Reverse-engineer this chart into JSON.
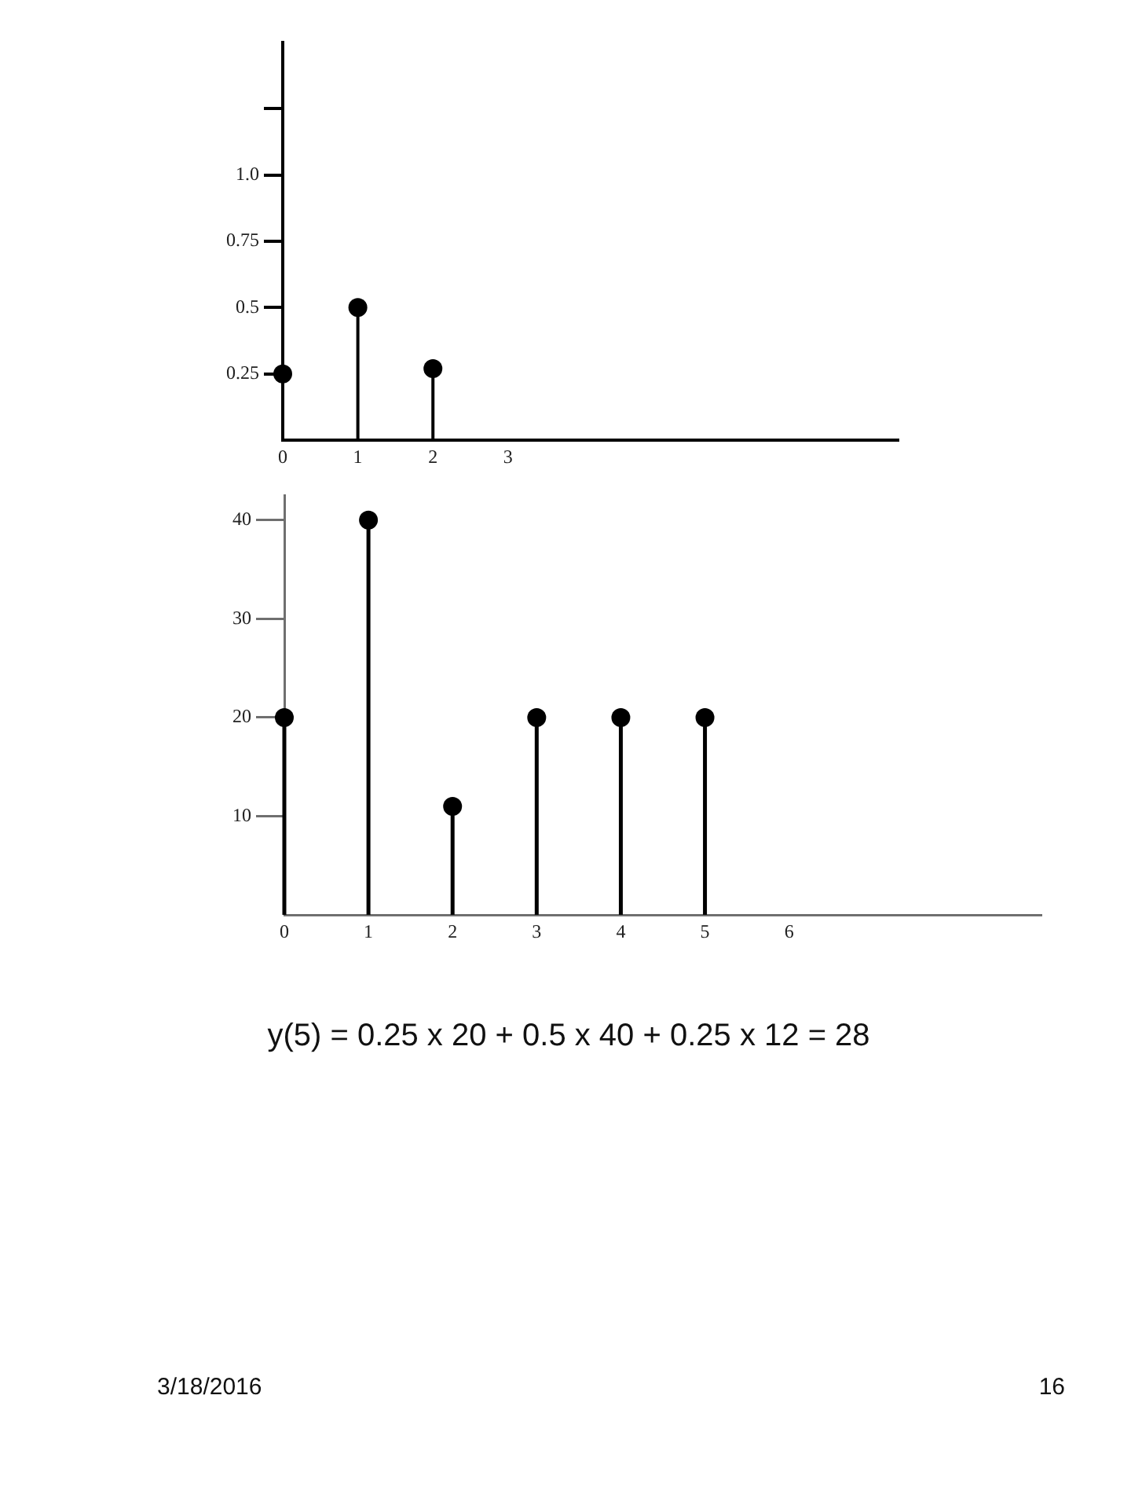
{
  "chart_data": [
    {
      "type": "lollipop",
      "x": [
        0,
        1,
        2
      ],
      "values": [
        0.25,
        0.5,
        0.27
      ],
      "color": "#000000",
      "marker": "circle",
      "xlim": [
        0,
        8.2
      ],
      "xticks": [
        0,
        1,
        2,
        3
      ],
      "ylim": [
        0,
        1.5
      ],
      "yticks": [
        0.25,
        0.5,
        0.75,
        {
          "value": 1,
          "label": "1.0"
        },
        {
          "value": 1.25,
          "label": null
        }
      ]
    },
    {
      "type": "lollipop",
      "x": [
        0,
        1,
        2,
        3,
        4,
        5
      ],
      "values": [
        20,
        40,
        11,
        20,
        20,
        20
      ],
      "color": "#000000",
      "marker": "circle",
      "xlim": [
        0,
        9
      ],
      "xticks": [
        0,
        1,
        2,
        3,
        4,
        5,
        6
      ],
      "ylim": [
        0,
        42.5
      ],
      "yticks": [
        10,
        20,
        30,
        40
      ],
      "annotations": [
        "y(5) = 0.25 x 20 + 0.5 x 40 + 0.25 x 12 = 28",
        "3/18/2016",
        "16"
      ]
    }
  ]
}
